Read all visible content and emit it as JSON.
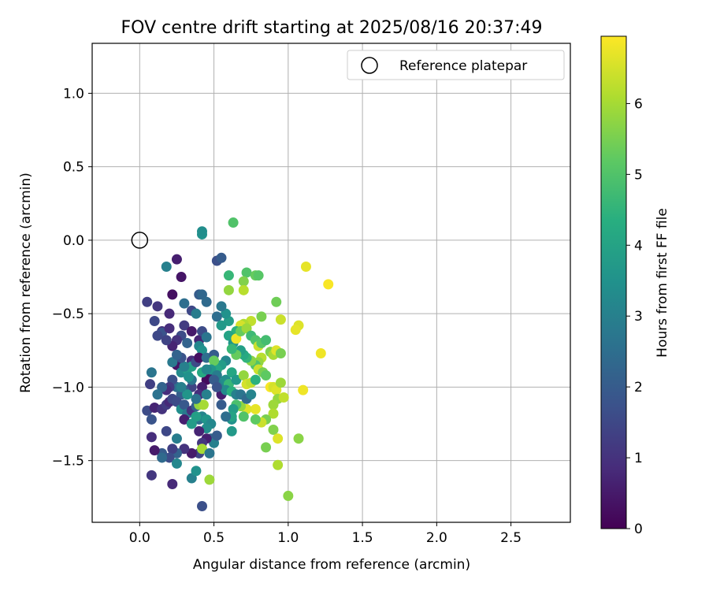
{
  "chart_data": {
    "type": "scatter",
    "title": "FOV centre drift starting at 2025/08/16 20:37:49",
    "xlabel": "Angular distance from reference (arcmin)",
    "ylabel": "Rotation from reference (arcmin)",
    "xlim": [
      -0.32,
      2.9
    ],
    "ylim": [
      -1.92,
      1.34
    ],
    "xticks": [
      0.0,
      0.5,
      1.0,
      1.5,
      2.0,
      2.5
    ],
    "xtick_labels": [
      "0.0",
      "0.5",
      "1.0",
      "1.5",
      "2.0",
      "2.5"
    ],
    "yticks": [
      1.0,
      0.5,
      0.0,
      -0.5,
      -1.0,
      -1.5
    ],
    "ytick_labels": [
      "1.0",
      "0.5",
      "0.0",
      "−0.5",
      "−1.0",
      "−1.5"
    ],
    "grid": true,
    "legend": {
      "placement": "top-right",
      "entries": [
        "Reference platepar"
      ]
    },
    "reference_point": {
      "x": 0.0,
      "y": 0.0,
      "label": "Reference platepar"
    },
    "colorbar": {
      "label": "Hours from first FF file",
      "colormap": "viridis",
      "range": [
        0,
        6.95
      ],
      "ticks": [
        0,
        1,
        2,
        3,
        4,
        5,
        6
      ],
      "tick_labels": [
        "0",
        "1",
        "2",
        "3",
        "4",
        "5",
        "6"
      ]
    },
    "series": [
      {
        "points": [
          [
            0.12,
            -0.45,
            1.1
          ],
          [
            0.05,
            -0.42,
            1.3
          ],
          [
            0.1,
            -0.55,
            1.5
          ],
          [
            0.15,
            -0.62,
            1.0
          ],
          [
            0.2,
            -0.5,
            0.8
          ],
          [
            0.25,
            -0.13,
            0.6
          ],
          [
            0.28,
            -0.25,
            0.4
          ],
          [
            0.22,
            -0.37,
            0.3
          ],
          [
            0.18,
            -0.18,
            3.0
          ],
          [
            0.3,
            -0.43,
            2.5
          ],
          [
            0.35,
            -0.48,
            1.5
          ],
          [
            0.4,
            -0.37,
            2.0
          ],
          [
            0.42,
            -0.37,
            2.3
          ],
          [
            0.45,
            -0.42,
            2.4
          ],
          [
            0.38,
            -0.5,
            2.9
          ],
          [
            0.3,
            -0.58,
            1.2
          ],
          [
            0.28,
            -0.65,
            1.6
          ],
          [
            0.32,
            -0.7,
            2.2
          ],
          [
            0.25,
            -0.68,
            1.0
          ],
          [
            0.22,
            -0.72,
            0.7
          ],
          [
            0.15,
            -0.63,
            1.8
          ],
          [
            0.12,
            -0.65,
            1.5
          ],
          [
            0.18,
            -0.68,
            1.4
          ],
          [
            0.2,
            -0.6,
            0.9
          ],
          [
            0.35,
            -0.62,
            0.5
          ],
          [
            0.4,
            -0.68,
            0.7
          ],
          [
            0.42,
            -0.62,
            1.6
          ],
          [
            0.45,
            -0.66,
            2.7
          ],
          [
            0.4,
            -0.72,
            3.2
          ],
          [
            0.42,
            -0.75,
            3.5
          ],
          [
            0.35,
            -0.82,
            0.9
          ],
          [
            0.3,
            -0.88,
            0.6
          ],
          [
            0.25,
            -0.85,
            0.4
          ],
          [
            0.22,
            -0.83,
            2.8
          ],
          [
            0.28,
            -0.9,
            3.3
          ],
          [
            0.32,
            -0.88,
            3.8
          ],
          [
            0.35,
            -0.86,
            3.9
          ],
          [
            0.38,
            -0.83,
            1.6
          ],
          [
            0.4,
            -0.8,
            0.3
          ],
          [
            0.45,
            -0.8,
            2.5
          ],
          [
            0.5,
            -0.78,
            2.0
          ],
          [
            0.48,
            -0.9,
            0.4
          ],
          [
            0.45,
            -0.95,
            0.2
          ],
          [
            0.42,
            -1.0,
            0.6
          ],
          [
            0.4,
            -1.05,
            0.9
          ],
          [
            0.35,
            -1.0,
            1.4
          ],
          [
            0.3,
            -1.02,
            1.9
          ],
          [
            0.28,
            -1.05,
            2.1
          ],
          [
            0.25,
            -1.0,
            2.5
          ],
          [
            0.22,
            -0.95,
            1.7
          ],
          [
            0.2,
            -1.0,
            1.2
          ],
          [
            0.18,
            -1.02,
            0.9
          ],
          [
            0.15,
            -1.0,
            2.2
          ],
          [
            0.12,
            -1.05,
            2.6
          ],
          [
            0.08,
            -0.9,
            2.7
          ],
          [
            0.07,
            -0.98,
            1.3
          ],
          [
            0.05,
            -1.16,
            1.6
          ],
          [
            0.08,
            -1.22,
            1.8
          ],
          [
            0.1,
            -1.14,
            0.7
          ],
          [
            0.15,
            -1.15,
            1.0
          ],
          [
            0.18,
            -1.12,
            1.2
          ],
          [
            0.2,
            -1.1,
            0.8
          ],
          [
            0.22,
            -1.08,
            1.5
          ],
          [
            0.25,
            -1.1,
            1.6
          ],
          [
            0.28,
            -1.15,
            3.4
          ],
          [
            0.3,
            -1.12,
            1.9
          ],
          [
            0.32,
            -1.18,
            2.8
          ],
          [
            0.3,
            -1.22,
            0.6
          ],
          [
            0.35,
            -1.16,
            1.0
          ],
          [
            0.38,
            -1.13,
            2.1
          ],
          [
            0.4,
            -1.22,
            2.6
          ],
          [
            0.42,
            -1.2,
            3.1
          ],
          [
            0.45,
            -1.22,
            3.6
          ],
          [
            0.48,
            -1.35,
            2.3
          ],
          [
            0.5,
            -1.38,
            3.0
          ],
          [
            0.52,
            -1.33,
            2.0
          ],
          [
            0.45,
            -1.35,
            0.6
          ],
          [
            0.42,
            -1.38,
            1.1
          ],
          [
            0.4,
            -1.45,
            1.4
          ],
          [
            0.42,
            -1.42,
            6.0
          ],
          [
            0.35,
            -1.45,
            0.5
          ],
          [
            0.3,
            -1.42,
            1.0
          ],
          [
            0.25,
            -1.45,
            2.2
          ],
          [
            0.22,
            -1.42,
            1.3
          ],
          [
            0.2,
            -1.48,
            1.6
          ],
          [
            0.15,
            -1.45,
            2.0
          ],
          [
            0.15,
            -1.48,
            2.4
          ],
          [
            0.1,
            -1.43,
            0.5
          ],
          [
            0.08,
            -1.34,
            0.9
          ],
          [
            0.18,
            -1.3,
            1.5
          ],
          [
            0.25,
            -1.35,
            2.9
          ],
          [
            0.25,
            -1.52,
            3.2
          ],
          [
            0.22,
            -1.66,
            0.8
          ],
          [
            0.08,
            -1.6,
            1.1
          ],
          [
            0.35,
            -1.62,
            3.0
          ],
          [
            0.38,
            -1.57,
            3.5
          ],
          [
            0.47,
            -1.63,
            5.9
          ],
          [
            0.42,
            -1.81,
            1.7
          ],
          [
            0.47,
            -1.45,
            2.7
          ],
          [
            0.42,
            0.04,
            3.5
          ],
          [
            0.42,
            0.06,
            3.4
          ],
          [
            0.52,
            -0.14,
            1.7
          ],
          [
            0.55,
            -0.12,
            2.0
          ],
          [
            0.63,
            0.12,
            5.0
          ],
          [
            0.6,
            -0.24,
            4.6
          ],
          [
            0.6,
            -0.34,
            5.8
          ],
          [
            0.72,
            -0.22,
            5.0
          ],
          [
            0.7,
            -0.28,
            5.6
          ],
          [
            0.7,
            -0.34,
            6.2
          ],
          [
            0.78,
            -0.24,
            5.3
          ],
          [
            0.8,
            -0.24,
            5.1
          ],
          [
            0.92,
            -0.42,
            5.4
          ],
          [
            1.12,
            -0.18,
            6.7
          ],
          [
            1.27,
            -0.3,
            6.9
          ],
          [
            1.07,
            -0.58,
            6.6
          ],
          [
            1.05,
            -0.61,
            6.7
          ],
          [
            0.95,
            -0.54,
            6.4
          ],
          [
            0.82,
            -0.52,
            5.5
          ],
          [
            0.75,
            -0.55,
            6.3
          ],
          [
            0.7,
            -0.57,
            6.1
          ],
          [
            0.68,
            -0.58,
            6.5
          ],
          [
            0.65,
            -0.62,
            4.4
          ],
          [
            0.6,
            -0.55,
            3.8
          ],
          [
            0.58,
            -0.5,
            3.5
          ],
          [
            0.55,
            -0.45,
            2.8
          ],
          [
            0.52,
            -0.52,
            2.5
          ],
          [
            0.55,
            -0.58,
            3.7
          ],
          [
            0.6,
            -0.65,
            4.0
          ],
          [
            0.63,
            -0.7,
            3.6
          ],
          [
            0.65,
            -0.67,
            6.8
          ],
          [
            0.68,
            -0.62,
            5.3
          ],
          [
            0.72,
            -0.6,
            5.9
          ],
          [
            0.75,
            -0.65,
            4.7
          ],
          [
            0.78,
            -0.68,
            5.0
          ],
          [
            0.8,
            -0.72,
            6.4
          ],
          [
            0.82,
            -0.7,
            5.1
          ],
          [
            0.85,
            -0.68,
            4.8
          ],
          [
            0.88,
            -0.76,
            5.6
          ],
          [
            0.9,
            -0.78,
            6.0
          ],
          [
            0.92,
            -0.75,
            6.6
          ],
          [
            0.95,
            -0.77,
            5.5
          ],
          [
            0.82,
            -0.8,
            6.2
          ],
          [
            0.8,
            -0.83,
            5.8
          ],
          [
            0.78,
            -0.85,
            5.0
          ],
          [
            0.75,
            -0.82,
            5.7
          ],
          [
            0.72,
            -0.8,
            4.5
          ],
          [
            0.7,
            -0.78,
            4.2
          ],
          [
            0.68,
            -0.75,
            3.9
          ],
          [
            0.65,
            -0.78,
            5.3
          ],
          [
            0.62,
            -0.74,
            4.6
          ],
          [
            0.58,
            -0.82,
            3.2
          ],
          [
            0.55,
            -0.85,
            3.8
          ],
          [
            0.52,
            -0.88,
            4.1
          ],
          [
            0.5,
            -0.82,
            5.3
          ],
          [
            0.48,
            -0.88,
            3.6
          ],
          [
            0.52,
            -0.92,
            2.9
          ],
          [
            0.55,
            -0.98,
            3.1
          ],
          [
            0.58,
            -0.95,
            3.4
          ],
          [
            0.6,
            -0.98,
            4.6
          ],
          [
            0.62,
            -0.9,
            4.1
          ],
          [
            0.65,
            -0.95,
            3.7
          ],
          [
            0.7,
            -0.92,
            5.8
          ],
          [
            0.72,
            -0.98,
            6.5
          ],
          [
            0.75,
            -0.97,
            6.3
          ],
          [
            0.78,
            -0.95,
            4.4
          ],
          [
            0.8,
            -0.88,
            6.4
          ],
          [
            0.83,
            -0.9,
            5.5
          ],
          [
            0.85,
            -0.92,
            5.2
          ],
          [
            0.88,
            -1.0,
            6.9
          ],
          [
            0.9,
            -1.0,
            6.5
          ],
          [
            0.92,
            -1.02,
            6.6
          ],
          [
            0.95,
            -0.97,
            5.9
          ],
          [
            0.93,
            -1.08,
            5.8
          ],
          [
            0.97,
            -1.07,
            6.3
          ],
          [
            0.9,
            -1.12,
            5.9
          ],
          [
            0.9,
            -1.18,
            6.1
          ],
          [
            0.85,
            -1.22,
            5.5
          ],
          [
            0.82,
            -1.24,
            6.4
          ],
          [
            0.78,
            -1.22,
            5.2
          ],
          [
            0.78,
            -1.15,
            6.7
          ],
          [
            0.72,
            -1.15,
            6.6
          ],
          [
            0.7,
            -1.2,
            5.0
          ],
          [
            0.68,
            -1.13,
            5.8
          ],
          [
            0.65,
            -1.12,
            4.9
          ],
          [
            0.63,
            -1.15,
            3.8
          ],
          [
            0.62,
            -1.22,
            3.5
          ],
          [
            0.62,
            -1.2,
            4.0
          ],
          [
            0.62,
            -1.3,
            3.7
          ],
          [
            0.58,
            -1.2,
            2.5
          ],
          [
            0.55,
            -1.12,
            2.0
          ],
          [
            0.55,
            -1.05,
            0.6
          ],
          [
            0.58,
            -1.02,
            3.3
          ],
          [
            0.62,
            -1.03,
            4.4
          ],
          [
            0.65,
            -1.05,
            3.0
          ],
          [
            0.68,
            -1.05,
            2.7
          ],
          [
            0.72,
            -1.08,
            2.4
          ],
          [
            0.75,
            -1.05,
            3.1
          ],
          [
            0.9,
            -1.29,
            5.6
          ],
          [
            0.93,
            -1.35,
            6.6
          ],
          [
            0.93,
            -1.53,
            6.1
          ],
          [
            1.07,
            -1.35,
            5.7
          ],
          [
            1.0,
            -1.74,
            5.7
          ],
          [
            0.85,
            -1.41,
            5.5
          ],
          [
            1.1,
            -1.02,
            6.8
          ],
          [
            1.22,
            -0.77,
            6.8
          ],
          [
            0.48,
            -1.25,
            3.2
          ],
          [
            0.45,
            -1.28,
            3.4
          ],
          [
            0.4,
            -1.3,
            0.7
          ],
          [
            0.38,
            -1.2,
            3.9
          ],
          [
            0.35,
            -1.25,
            3.8
          ],
          [
            0.35,
            -0.95,
            2.7
          ],
          [
            0.33,
            -0.93,
            3.5
          ],
          [
            0.3,
            -0.86,
            3.0
          ],
          [
            0.28,
            -0.8,
            1.8
          ],
          [
            0.25,
            -0.78,
            2.2
          ],
          [
            0.42,
            -0.9,
            4.2
          ],
          [
            0.45,
            -0.88,
            3.2
          ],
          [
            0.5,
            -0.95,
            2.0
          ],
          [
            0.52,
            -1.0,
            1.8
          ],
          [
            0.45,
            -1.05,
            3.0
          ],
          [
            0.4,
            -1.12,
            5.8
          ],
          [
            0.43,
            -1.12,
            6.0
          ],
          [
            0.38,
            -1.08,
            2.6
          ],
          [
            0.32,
            -1.05,
            3.6
          ],
          [
            0.28,
            -1.0,
            3.0
          ]
        ]
      }
    ]
  }
}
